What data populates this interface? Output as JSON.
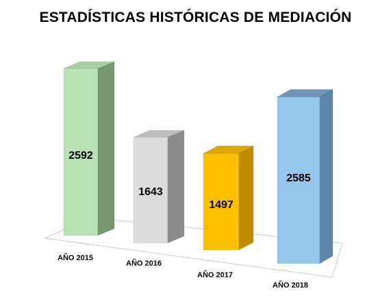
{
  "chart_data": {
    "type": "bar",
    "title": "ESTADÍSTICAS HISTÓRICAS DE MEDIACIÓN",
    "categories": [
      "AÑO 2015",
      "AÑO 2016",
      "AÑO 2017",
      "AÑO 2018"
    ],
    "values": [
      2592,
      1643,
      1497,
      2585
    ],
    "data_labels": [
      "2592",
      "1643",
      "1497",
      "2585"
    ],
    "colors": {
      "front": [
        "#b8e2b4",
        "#dcdcdc",
        "#ffc000",
        "#94c5ea"
      ],
      "side": [
        "#78976e",
        "#8c8c8c",
        "#c28c00",
        "#5f86a8"
      ],
      "top": [
        "#a6cca0",
        "#bdbdbd",
        "#dda600",
        "#6f95b7"
      ]
    },
    "legend": "none",
    "grid": false,
    "style": "3d-columns"
  }
}
